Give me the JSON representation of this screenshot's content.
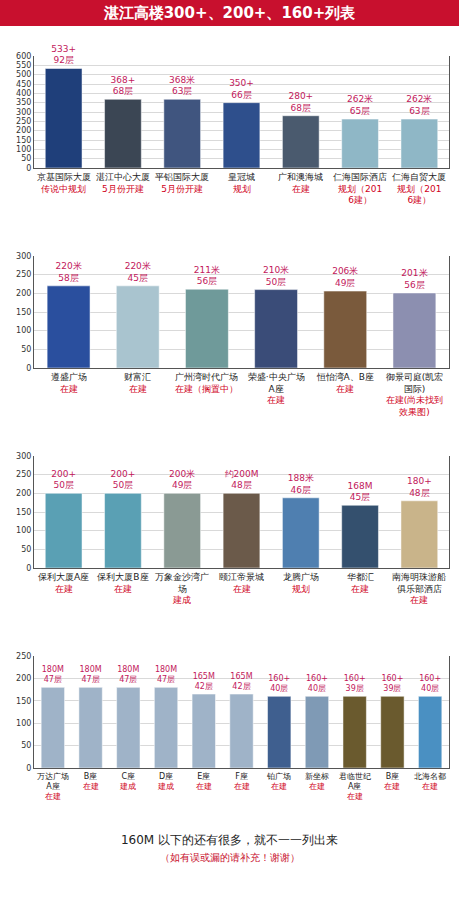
{
  "title": "湛江高楼300+、200+、160+列表",
  "chart_data": [
    {
      "type": "bar",
      "categories": [
        "京基国际大厦",
        "湛江中心大厦",
        "平铝国际大厦",
        "皇冠城",
        "广和澳海城",
        "仁海国际酒店",
        "仁海自贸大厦"
      ],
      "values": [
        533,
        368,
        368,
        350,
        280,
        262,
        262
      ],
      "value_labels": [
        "533+",
        "368+",
        "368米",
        "350+",
        "280+",
        "262米",
        "262米"
      ],
      "floor_labels": [
        "92层",
        "68层",
        "63层",
        "66层",
        "68层",
        "65层",
        "63层"
      ],
      "statuses": [
        "传说中规划",
        "5月份开建",
        "5月份开建",
        "规划",
        "在建",
        "规划（2016建）",
        "规划（2016建）"
      ],
      "colors": [
        "#1f3f7a",
        "#3b4654",
        "#40557f",
        "#2e4f8c",
        "#4a5a6e",
        "#8fb7c6",
        "#8fb7c6"
      ],
      "ylim": [
        0,
        600
      ],
      "yticks": [
        0,
        50,
        100,
        150,
        200,
        250,
        300,
        350,
        400,
        450,
        500,
        550,
        600
      ],
      "grid": true,
      "data_labels": true
    },
    {
      "type": "bar",
      "categories": [
        "遵盛广场",
        "财富汇",
        "广州湾时代广场",
        "荣盛·中央广场A座",
        "恒怡湾A、B座",
        "御景司庭(凯宏国际)"
      ],
      "values": [
        220,
        220,
        211,
        210,
        206,
        201
      ],
      "value_labels": [
        "220米",
        "220米",
        "211米",
        "210米",
        "206米",
        "201米"
      ],
      "floor_labels": [
        "58层",
        "45层",
        "56层",
        "50层",
        "49层",
        "56层"
      ],
      "statuses": [
        "在建",
        "在建",
        "在建（搁置中）",
        "在建",
        "在建",
        "在建(尚未找到效果图)"
      ],
      "colors": [
        "#2a4f9e",
        "#a9c4cf",
        "#6f9a9a",
        "#3a4c78",
        "#7a5a3c",
        "#8c8fb0"
      ],
      "ylim": [
        0,
        300
      ],
      "yticks": [
        0,
        50,
        100,
        150,
        200,
        250,
        300
      ],
      "grid": true,
      "data_labels": true
    },
    {
      "type": "bar",
      "categories": [
        "保利大厦A座",
        "保利大厦B座",
        "万象金沙湾广场",
        "颐江帝景城",
        "龙腾广场",
        "华都汇",
        "南海明珠游船俱乐部酒店"
      ],
      "values": [
        200,
        200,
        200,
        200,
        188,
        168,
        180
      ],
      "value_labels": [
        "200+",
        "200+",
        "200米",
        "约200M",
        "188米",
        "168M",
        "180+"
      ],
      "floor_labels": [
        "50层",
        "50层",
        "49层",
        "48层",
        "46层",
        "45层",
        "48层"
      ],
      "statuses": [
        "在建",
        "在建",
        "建成",
        "在建",
        "规划",
        "在建",
        "在建"
      ],
      "colors": [
        "#5aa0b4",
        "#5aa0b4",
        "#8a9a94",
        "#6b5a4a",
        "#4f7fb0",
        "#34506e",
        "#c9b48a"
      ],
      "ylim": [
        0,
        300
      ],
      "yticks": [
        0,
        50,
        100,
        150,
        200,
        250,
        300
      ],
      "grid": true,
      "data_labels": true
    },
    {
      "type": "bar",
      "categories": [
        "万达广场A座",
        "B座",
        "C座",
        "D座",
        "E座",
        "F座",
        "铂广场",
        "新坐标",
        "君临世纪A座",
        "B座",
        "北海名都"
      ],
      "values": [
        180,
        180,
        180,
        180,
        165,
        165,
        160,
        160,
        160,
        160,
        160
      ],
      "value_labels": [
        "180M",
        "180M",
        "180M",
        "180M",
        "165M",
        "165M",
        "160+",
        "160+",
        "160+",
        "160+",
        "160+"
      ],
      "floor_labels": [
        "47层",
        "47层",
        "47层",
        "47层",
        "42层",
        "42层",
        "40层",
        "40层",
        "39层",
        "39层",
        "40层"
      ],
      "statuses": [
        "在建",
        "在建",
        "建成",
        "建成",
        "在建",
        "在建",
        "在建",
        "在建",
        "在建",
        "在建",
        "在建"
      ],
      "colors": [
        "#9fb3c8",
        "#9fb3c8",
        "#9fb3c8",
        "#9fb3c8",
        "#9fb3c8",
        "#9fb3c8",
        "#3f5f8f",
        "#7f9ab5",
        "#6a5a2e",
        "#6a5a2e",
        "#4a90c2"
      ],
      "ylim": [
        0,
        250
      ],
      "yticks": [
        0,
        50,
        100,
        150,
        200,
        250
      ],
      "grid": true,
      "data_labels": true
    }
  ],
  "footer": [
    "160M 以下的还有很多，就不一一列出来",
    "（如有误或漏的请补充！谢谢）"
  ]
}
